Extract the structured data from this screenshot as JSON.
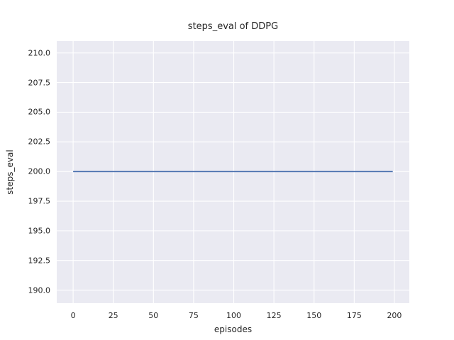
{
  "chart_data": {
    "type": "line",
    "title": "steps_eval of DDPG",
    "xlabel": "episodes",
    "ylabel": "steps_eval",
    "x_tick_labels": [
      "0",
      "25",
      "50",
      "75",
      "100",
      "125",
      "150",
      "175",
      "200"
    ],
    "y_tick_labels": [
      "190.0",
      "192.5",
      "195.0",
      "197.5",
      "200.0",
      "202.5",
      "205.0",
      "207.5",
      "210.0"
    ],
    "xlim": [
      -10.2,
      209.3
    ],
    "ylim": [
      188.9,
      211.0
    ],
    "grid": true,
    "legend_visible": false,
    "series": [
      {
        "name": "steps_eval",
        "color": "#4c72b0",
        "x": [
          0,
          199
        ],
        "y": [
          200,
          200
        ]
      }
    ],
    "colors": {
      "plot_background": "#eaeaf2",
      "grid": "#ffffff",
      "text": "#262626",
      "figure_background": "#ffffff",
      "line": "#4c72b0"
    }
  }
}
